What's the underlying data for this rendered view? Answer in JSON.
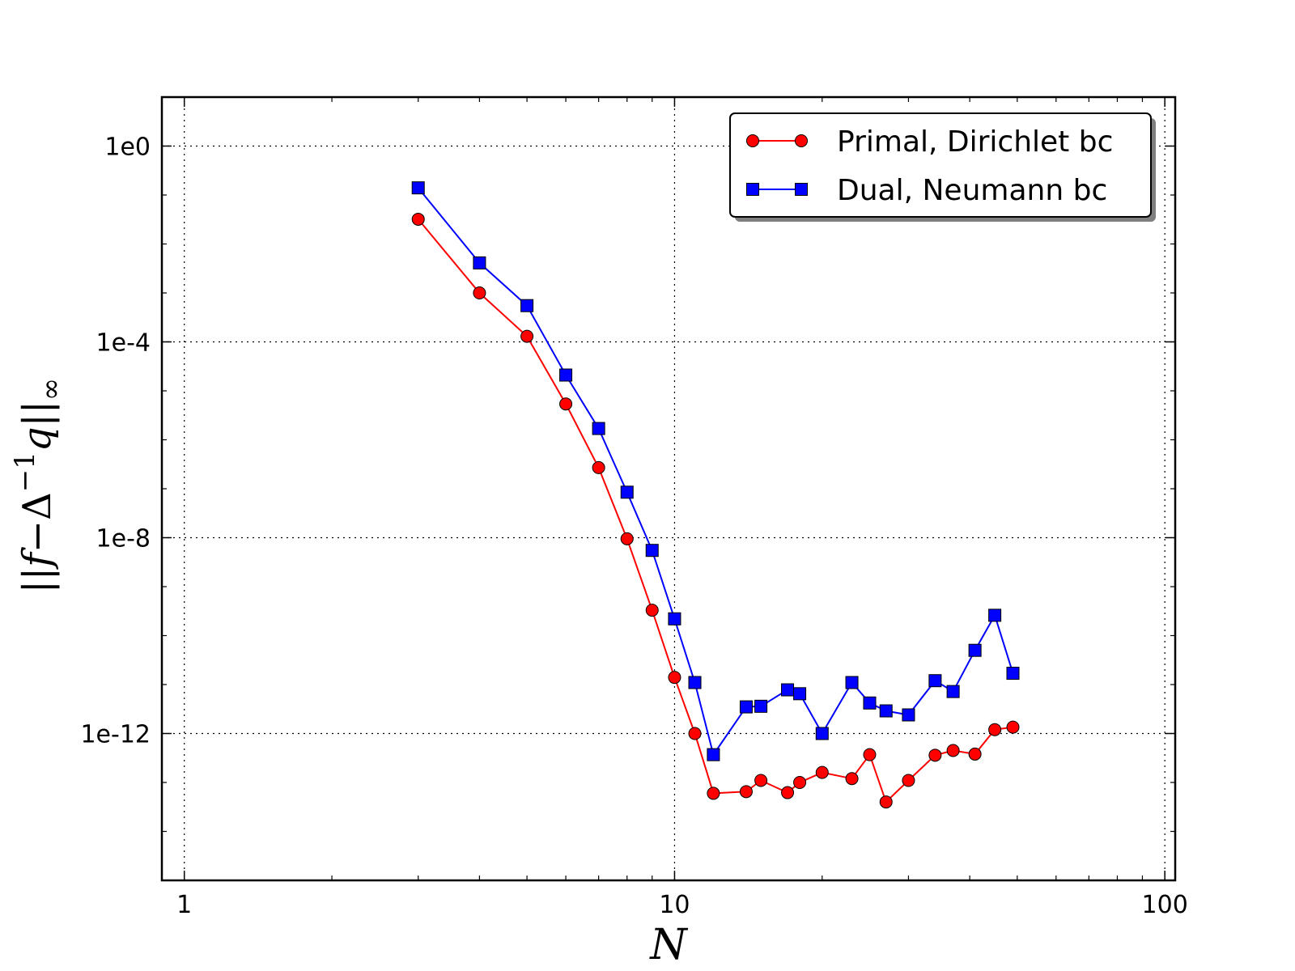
{
  "chart_data": {
    "type": "line",
    "title": "",
    "xlabel": "N",
    "ylabel_parts": {
      "open": "||",
      "f": "f",
      "minus": "−",
      "delta": "Δ",
      "sup": "−1",
      "q": "q",
      "close": "||",
      "sub": "∞"
    },
    "xscale": "log",
    "yscale": "log",
    "xlim": [
      0.9,
      105
    ],
    "ylim": [
      1e-15,
      10
    ],
    "grid": true,
    "legend_position": "top-right",
    "x_ticks": [
      {
        "value": 1,
        "label": "1"
      },
      {
        "value": 10,
        "label": "10"
      },
      {
        "value": 100,
        "label": "100"
      }
    ],
    "y_ticks": [
      {
        "value": 1,
        "label": "1e0"
      },
      {
        "value": 0.0001,
        "label": "1e-4"
      },
      {
        "value": 1e-08,
        "label": "1e-8"
      },
      {
        "value": 1e-12,
        "label": "1e-12"
      }
    ],
    "series": [
      {
        "name": "Primal, Dirichlet bc",
        "color": "#ff0000",
        "marker": "circle",
        "x": [
          3,
          4,
          5,
          6,
          7,
          8,
          9,
          10,
          11,
          12,
          14,
          15,
          17,
          18,
          20,
          23,
          25,
          27,
          30,
          34,
          37,
          41,
          45,
          49
        ],
        "y": [
          0.032,
          0.001,
          0.00013,
          5.4e-06,
          2.7e-07,
          9.5e-09,
          3.3e-10,
          1.4e-11,
          1e-12,
          6e-14,
          6.5e-14,
          1.1e-13,
          6.2e-14,
          1e-13,
          1.6e-13,
          1.2e-13,
          3.7e-13,
          4e-14,
          1.1e-13,
          3.6e-13,
          4.5e-13,
          3.8e-13,
          1.2e-12,
          1.35e-12
        ]
      },
      {
        "name": "Dual, Neumann bc",
        "color": "#0000ff",
        "marker": "square",
        "x": [
          3,
          4,
          5,
          6,
          7,
          8,
          9,
          10,
          11,
          12,
          14,
          15,
          17,
          18,
          20,
          23,
          25,
          27,
          30,
          34,
          37,
          41,
          45,
          49
        ],
        "y": [
          0.14,
          0.0041,
          0.00055,
          2.1e-05,
          1.7e-06,
          8.5e-08,
          5.5e-09,
          2.2e-10,
          1.1e-11,
          3.7e-13,
          3.5e-12,
          3.6e-12,
          7.8e-12,
          6.5e-12,
          1e-12,
          1.1e-11,
          4.2e-12,
          2.9e-12,
          2.4e-12,
          1.2e-11,
          7.2e-12,
          5e-11,
          2.6e-10,
          1.7e-11
        ]
      }
    ]
  }
}
